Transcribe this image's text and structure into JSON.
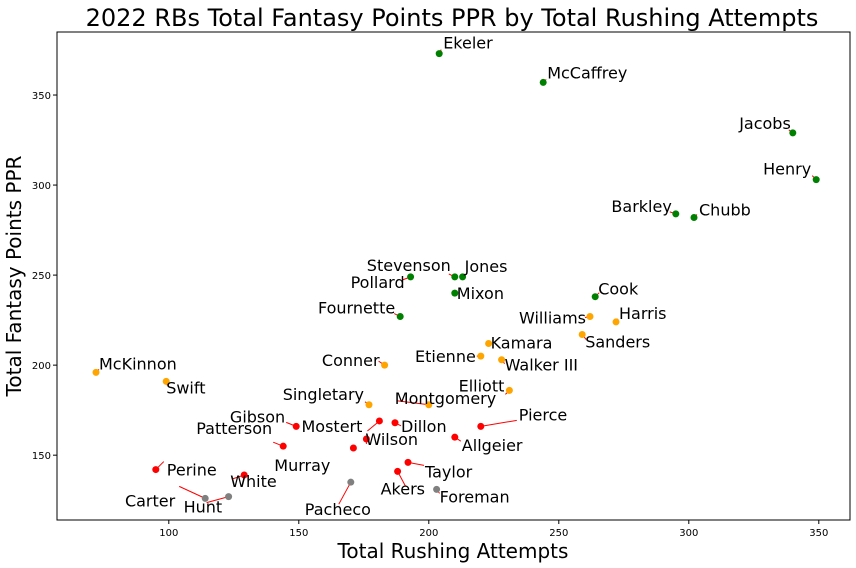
{
  "chart_data": {
    "type": "scatter",
    "title": "2022 RBs Total Fantasy Points PPR by Total Rushing Attempts",
    "xlabel": "Total Rushing Attempts",
    "ylabel": "Total Fantasy Points PPR",
    "xlim": [
      57,
      362
    ],
    "ylim": [
      114,
      385
    ],
    "xticks": [
      100,
      150,
      200,
      250,
      300,
      350
    ],
    "yticks": [
      150,
      200,
      250,
      300,
      350
    ],
    "grid": false,
    "colors": {
      "green": "#008000",
      "orange": "#ffa500",
      "red": "#ff0000",
      "gray": "#808080",
      "arrow": "#ff0000"
    },
    "points": [
      {
        "name": "Ekeler",
        "x": 204,
        "y": 373,
        "color": "green"
      },
      {
        "name": "McCaffrey",
        "x": 244,
        "y": 357,
        "color": "green"
      },
      {
        "name": "Jacobs",
        "x": 340,
        "y": 329,
        "color": "green"
      },
      {
        "name": "Henry",
        "x": 349,
        "y": 303,
        "color": "green"
      },
      {
        "name": "Barkley",
        "x": 295,
        "y": 284,
        "color": "green"
      },
      {
        "name": "Chubb",
        "x": 302,
        "y": 282,
        "color": "green"
      },
      {
        "name": "Stevenson",
        "x": 210,
        "y": 249,
        "color": "green"
      },
      {
        "name": "Jones",
        "x": 213,
        "y": 249,
        "color": "green"
      },
      {
        "name": "Pollard",
        "x": 193,
        "y": 249,
        "color": "green"
      },
      {
        "name": "Mixon",
        "x": 210,
        "y": 240,
        "color": "green"
      },
      {
        "name": "Cook",
        "x": 264,
        "y": 238,
        "color": "green"
      },
      {
        "name": "Fournette",
        "x": 189,
        "y": 227,
        "color": "green"
      },
      {
        "name": "Williams",
        "x": 262,
        "y": 227,
        "color": "orange"
      },
      {
        "name": "Harris",
        "x": 272,
        "y": 224,
        "color": "orange"
      },
      {
        "name": "Sanders",
        "x": 259,
        "y": 217,
        "color": "orange"
      },
      {
        "name": "Kamara",
        "x": 223,
        "y": 212,
        "color": "orange"
      },
      {
        "name": "Etienne",
        "x": 220,
        "y": 205,
        "color": "orange"
      },
      {
        "name": "Walker III",
        "x": 228,
        "y": 203,
        "color": "orange"
      },
      {
        "name": "Conner",
        "x": 183,
        "y": 200,
        "color": "orange"
      },
      {
        "name": "McKinnon",
        "x": 72,
        "y": 196,
        "color": "orange"
      },
      {
        "name": "Swift",
        "x": 99,
        "y": 191,
        "color": "orange"
      },
      {
        "name": "Elliott",
        "x": 231,
        "y": 186,
        "color": "orange"
      },
      {
        "name": "Singletary",
        "x": 177,
        "y": 178,
        "color": "orange"
      },
      {
        "name": "Montgomery",
        "x": 200,
        "y": 178,
        "color": "orange"
      },
      {
        "name": "Pierce",
        "x": 220,
        "y": 166,
        "color": "red"
      },
      {
        "name": "Gibson",
        "x": 149,
        "y": 166,
        "color": "red"
      },
      {
        "name": "Dillon",
        "x": 187,
        "y": 168,
        "color": "red"
      },
      {
        "name": "Mostert",
        "x": 181,
        "y": 169,
        "color": "red"
      },
      {
        "name": "Allgeier",
        "x": 210,
        "y": 160,
        "color": "red"
      },
      {
        "name": "Wilson",
        "x": 176,
        "y": 159,
        "color": "red"
      },
      {
        "name": "Patterson",
        "x": 144,
        "y": 155,
        "color": "red"
      },
      {
        "name": "Taylor",
        "x": 192,
        "y": 146,
        "color": "red"
      },
      {
        "name": "Perine",
        "x": 95,
        "y": 142,
        "color": "red"
      },
      {
        "name": "Akers",
        "x": 188,
        "y": 141,
        "color": "red"
      },
      {
        "name": "White",
        "x": 129,
        "y": 139,
        "color": "red"
      },
      {
        "name": "Murray",
        "x": 171,
        "y": 154,
        "color": "red"
      },
      {
        "name": "Pacheco",
        "x": 170,
        "y": 135,
        "color": "gray"
      },
      {
        "name": "Foreman",
        "x": 203,
        "y": 131,
        "color": "gray"
      },
      {
        "name": "Carter",
        "x": 114,
        "y": 126,
        "color": "gray"
      },
      {
        "name": "Hunt",
        "x": 123,
        "y": 127,
        "color": "gray"
      }
    ]
  }
}
